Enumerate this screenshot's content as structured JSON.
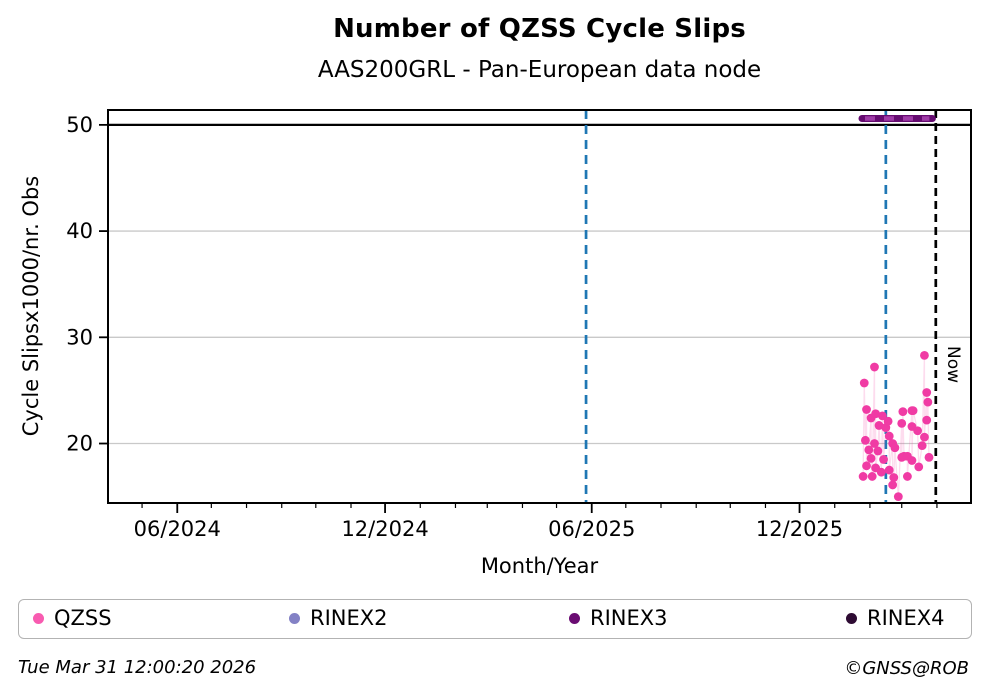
{
  "chart_data": {
    "type": "scatter",
    "title": "Number of QZSS Cycle Slips",
    "subtitle": "AAS200GRL - Pan-European data node",
    "xlabel": "Month/Year",
    "ylabel": "Cycle Slipsx1000/nr. Obs",
    "x_domain": [
      "2024-04-01",
      "2026-05-01"
    ],
    "ylim": [
      14.4,
      51.4
    ],
    "y_ticks": [
      20,
      30,
      40,
      50
    ],
    "x_major_ticks": [
      {
        "date": "2024-06-01",
        "label": "06/2024"
      },
      {
        "date": "2024-12-01",
        "label": "12/2024"
      },
      {
        "date": "2025-06-01",
        "label": "06/2025"
      },
      {
        "date": "2025-12-01",
        "label": "12/2025"
      }
    ],
    "x_minor_tick_interval_months": 1,
    "grid": {
      "y_values": [
        20,
        30,
        40
      ],
      "color": "#c9c9c9"
    },
    "hline": {
      "y": 50,
      "color": "#000000"
    },
    "vlines": [
      {
        "x": "2025-05-27",
        "color": "#1f77b4",
        "style": "dashed",
        "dash": "9 6"
      },
      {
        "x": "2026-02-15",
        "color": "#1f77b4",
        "style": "dashed",
        "dash": "9 6"
      },
      {
        "x": "2026-03-31",
        "color": "#000000",
        "style": "dashed",
        "dash": "8 5",
        "label": "Now"
      }
    ],
    "series": [
      {
        "name": "QZSS",
        "type": "scatter",
        "color": "#f03ba4",
        "stem_color": "rgba(244,80,170,0.2)",
        "points": [
          {
            "x": "2026-01-26",
            "y": 16.9
          },
          {
            "x": "2026-01-27",
            "y": 25.7
          },
          {
            "x": "2026-01-28",
            "y": 20.3
          },
          {
            "x": "2026-01-29",
            "y": 23.2
          },
          {
            "x": "2026-01-29",
            "y": 17.9
          },
          {
            "x": "2026-01-31",
            "y": 19.4
          },
          {
            "x": "2026-02-02",
            "y": 22.4
          },
          {
            "x": "2026-02-02",
            "y": 18.6
          },
          {
            "x": "2026-02-03",
            "y": 16.9
          },
          {
            "x": "2026-02-05",
            "y": 27.2
          },
          {
            "x": "2026-02-05",
            "y": 20.0
          },
          {
            "x": "2026-02-06",
            "y": 22.8
          },
          {
            "x": "2026-02-06",
            "y": 17.7
          },
          {
            "x": "2026-02-08",
            "y": 19.3
          },
          {
            "x": "2026-02-09",
            "y": 21.7
          },
          {
            "x": "2026-02-11",
            "y": 17.3
          },
          {
            "x": "2026-02-12",
            "y": 22.6
          },
          {
            "x": "2026-02-13",
            "y": 18.5
          },
          {
            "x": "2026-02-15",
            "y": 21.5
          },
          {
            "x": "2026-02-17",
            "y": 22.1
          },
          {
            "x": "2026-02-18",
            "y": 20.7
          },
          {
            "x": "2026-02-18",
            "y": 17.5
          },
          {
            "x": "2026-02-21",
            "y": 20.0
          },
          {
            "x": "2026-02-21",
            "y": 16.1
          },
          {
            "x": "2026-02-22",
            "y": 16.8
          },
          {
            "x": "2026-02-23",
            "y": 19.6
          },
          {
            "x": "2026-02-26",
            "y": 15.0
          },
          {
            "x": "2026-03-01",
            "y": 21.9
          },
          {
            "x": "2026-03-01",
            "y": 18.7
          },
          {
            "x": "2026-03-02",
            "y": 23.0
          },
          {
            "x": "2026-03-03",
            "y": 18.8
          },
          {
            "x": "2026-03-06",
            "y": 18.8
          },
          {
            "x": "2026-03-06",
            "y": 16.9
          },
          {
            "x": "2026-03-10",
            "y": 23.1
          },
          {
            "x": "2026-03-10",
            "y": 21.6
          },
          {
            "x": "2026-03-10",
            "y": 18.4
          },
          {
            "x": "2026-03-11",
            "y": 23.1
          },
          {
            "x": "2026-03-15",
            "y": 21.2
          },
          {
            "x": "2026-03-16",
            "y": 17.8
          },
          {
            "x": "2026-03-19",
            "y": 19.8
          },
          {
            "x": "2026-03-21",
            "y": 28.3
          },
          {
            "x": "2026-03-21",
            "y": 20.6
          },
          {
            "x": "2026-03-23",
            "y": 24.8
          },
          {
            "x": "2026-03-23",
            "y": 22.2
          },
          {
            "x": "2026-03-24",
            "y": 23.9
          },
          {
            "x": "2026-03-25",
            "y": 18.7
          }
        ]
      },
      {
        "name": "RINEX3",
        "type": "segment",
        "color": "#650b70",
        "dash_color": "#a03ca8",
        "y": 50.6,
        "x_start": "2026-01-25",
        "x_end": "2026-03-28"
      }
    ],
    "legend_position": "bottom"
  },
  "legend": {
    "items": [
      {
        "label": "QZSS",
        "color": "#f85bb0"
      },
      {
        "label": "RINEX2",
        "color": "#8381c5"
      },
      {
        "label": "RINEX3",
        "color": "#6a0c72"
      },
      {
        "label": "RINEX4",
        "color": "#2e0b33"
      }
    ]
  },
  "footer": {
    "timestamp": "Tue Mar 31 12:00:20 2026",
    "credit": "©GNSS@ROB"
  }
}
